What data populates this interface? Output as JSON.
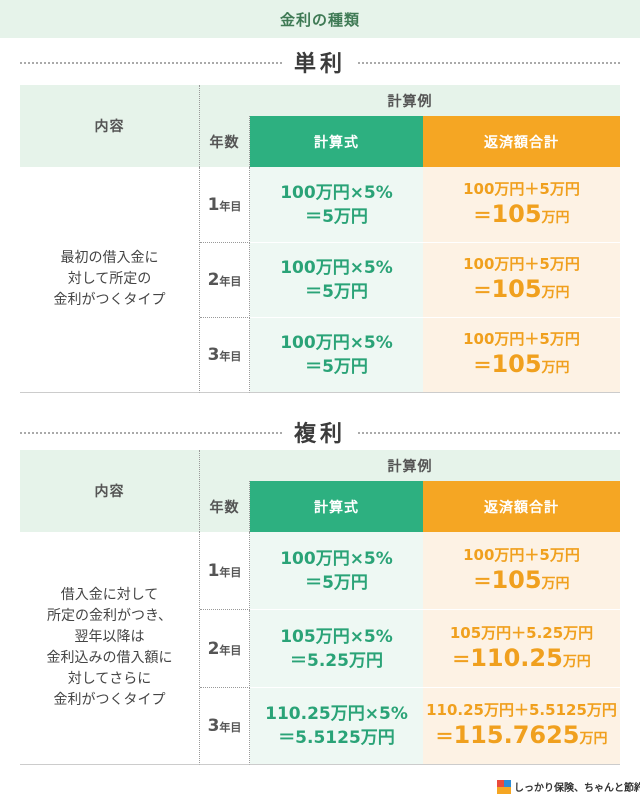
{
  "header": {
    "title": "金利の種類"
  },
  "sections": [
    {
      "title": "単利",
      "table": {
        "content_header": "内容",
        "example_header": "計算例",
        "year_header": "年数",
        "formula_header": "計算式",
        "total_header": "返済額合計",
        "description": [
          "最初の借入金に",
          "対して所定の",
          "金利がつくタイプ"
        ],
        "rows": [
          {
            "year": {
              "num": "1",
              "unit": "年目"
            },
            "formula": [
              "100万円×5%",
              "＝5万円"
            ],
            "total": {
              "line1": "100万円＋5万円",
              "line2": {
                "prefix": "＝",
                "amount": "105",
                "unit": "万円"
              }
            }
          },
          {
            "year": {
              "num": "2",
              "unit": "年目"
            },
            "formula": [
              "100万円×5%",
              "＝5万円"
            ],
            "total": {
              "line1": "100万円＋5万円",
              "line2": {
                "prefix": "＝",
                "amount": "105",
                "unit": "万円"
              }
            }
          },
          {
            "year": {
              "num": "3",
              "unit": "年目"
            },
            "formula": [
              "100万円×5%",
              "＝5万円"
            ],
            "total": {
              "line1": "100万円＋5万円",
              "line2": {
                "prefix": "＝",
                "amount": "105",
                "unit": "万円"
              }
            }
          }
        ]
      }
    },
    {
      "title": "複利",
      "table": {
        "content_header": "内容",
        "example_header": "計算例",
        "year_header": "年数",
        "formula_header": "計算式",
        "total_header": "返済額合計",
        "description": [
          "借入金に対して",
          "所定の金利がつき、",
          "翌年以降は",
          "金利込みの借入額に",
          "対してさらに",
          "金利がつくタイプ"
        ],
        "rows": [
          {
            "year": {
              "num": "1",
              "unit": "年目"
            },
            "formula": [
              "100万円×5%",
              "＝5万円"
            ],
            "total": {
              "line1": "100万円＋5万円",
              "line2": {
                "prefix": "＝",
                "amount": "105",
                "unit": "万円"
              }
            }
          },
          {
            "year": {
              "num": "2",
              "unit": "年目"
            },
            "formula": [
              "105万円×5%",
              "＝5.25万円"
            ],
            "total": {
              "line1": "105万円＋5.25万円",
              "line2": {
                "prefix": "＝",
                "amount": "110.25",
                "unit": "万円"
              }
            }
          },
          {
            "year": {
              "num": "3",
              "unit": "年目"
            },
            "formula": [
              "110.25万円×5%",
              "＝5.5125万円"
            ],
            "total": {
              "line1": "110.25万円＋5.5125万円",
              "line2": {
                "prefix": "＝",
                "amount": "115.7625",
                "unit": "万円"
              }
            }
          }
        ]
      }
    }
  ],
  "footer": {
    "logo": "しっかり保険、ちゃんと節約。"
  }
}
